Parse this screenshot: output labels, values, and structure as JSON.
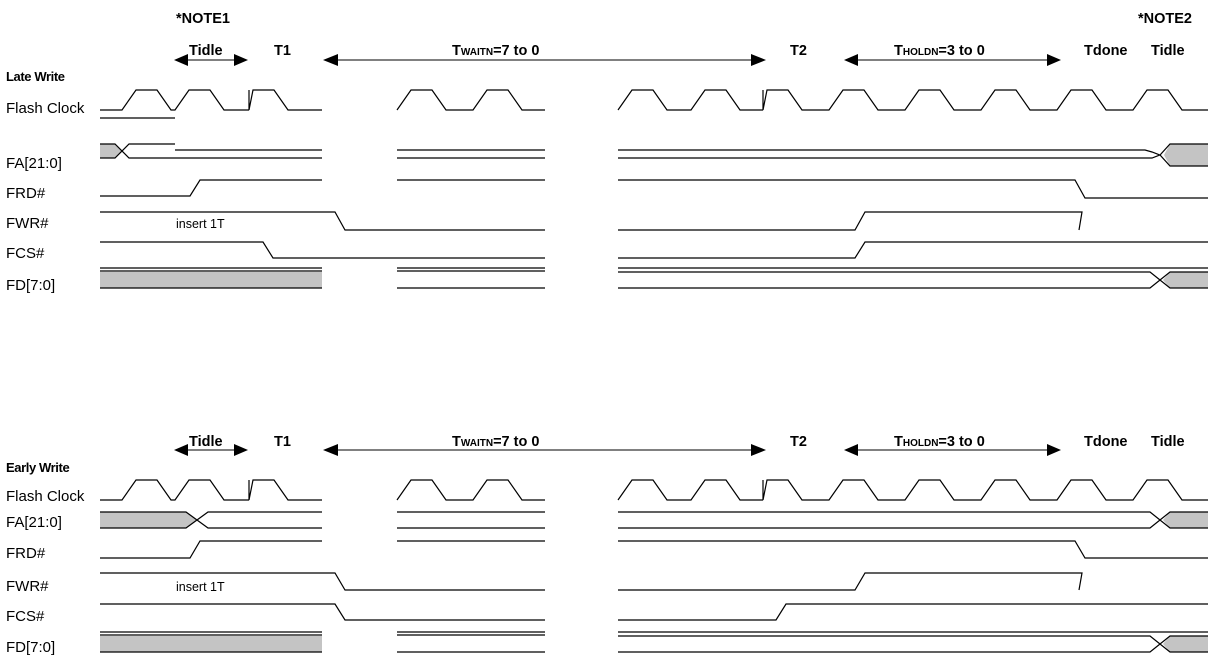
{
  "notes": {
    "note1": "*NOTE1",
    "note2": "*NOTE2"
  },
  "sections": [
    {
      "title": "Late Write",
      "headers": {
        "tidle_left": "Tidle",
        "t1": "T1",
        "twait_main": "T",
        "twait_sub": "WAITN",
        "twait_rest": "=7 to 0",
        "t2": "T2",
        "thold_main": "T",
        "thold_sub": "HOLDN",
        "thold_rest": "=3 to 0",
        "tdone": "Tdone",
        "tidle_right": "Tidle"
      },
      "signals": [
        "Flash Clock",
        "FA[21:0]",
        "FRD#",
        "FWR#",
        "FCS#",
        "FD[7:0]"
      ],
      "annotation": "insert 1T"
    },
    {
      "title": "Early Write",
      "headers": {
        "tidle_left": "Tidle",
        "t1": "T1",
        "twait_main": "T",
        "twait_sub": "WAITN",
        "twait_rest": "=7 to 0",
        "t2": "T2",
        "thold_main": "T",
        "thold_sub": "HOLDN",
        "thold_rest": "=3 to 0",
        "tdone": "Tdone",
        "tidle_right": "Tidle"
      },
      "signals": [
        "Flash Clock",
        "FA[21:0]",
        "FRD#",
        "FWR#",
        "FCS#",
        "FD[7:0]"
      ],
      "annotation": "insert 1T"
    }
  ]
}
